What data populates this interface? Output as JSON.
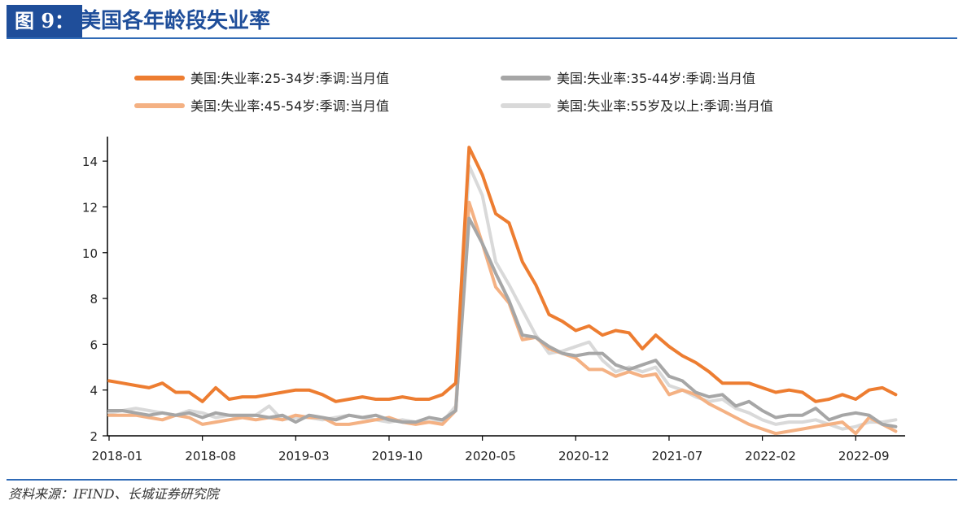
{
  "header": {
    "figure_tag": "图 9：",
    "title": "美国各年龄段失业率"
  },
  "source": "资料来源：IFIND、长城证券研究院",
  "colors": {
    "brand_blue": "#1f4e9a",
    "rule": "#2f6ab6"
  },
  "chart_data": {
    "type": "line",
    "title": "美国各年龄段失业率",
    "xlabel": "",
    "ylabel": "",
    "ylim": [
      2,
      15
    ],
    "yticks": [
      2,
      4,
      6,
      8,
      10,
      12,
      14
    ],
    "grid": false,
    "legend_position": "top",
    "x_tick_labels": [
      "2018-01",
      "2018-08",
      "2019-03",
      "2019-10",
      "2020-05",
      "2020-12",
      "2021-07",
      "2022-02",
      "2022-09"
    ],
    "x": [
      "2018-01",
      "2018-02",
      "2018-03",
      "2018-04",
      "2018-05",
      "2018-06",
      "2018-07",
      "2018-08",
      "2018-09",
      "2018-10",
      "2018-11",
      "2018-12",
      "2019-01",
      "2019-02",
      "2019-03",
      "2019-04",
      "2019-05",
      "2019-06",
      "2019-07",
      "2019-08",
      "2019-09",
      "2019-10",
      "2019-11",
      "2019-12",
      "2020-01",
      "2020-02",
      "2020-03",
      "2020-04",
      "2020-05",
      "2020-06",
      "2020-07",
      "2020-08",
      "2020-09",
      "2020-10",
      "2020-11",
      "2020-12",
      "2021-01",
      "2021-02",
      "2021-03",
      "2021-04",
      "2021-05",
      "2021-06",
      "2021-07",
      "2021-08",
      "2021-09",
      "2021-10",
      "2021-11",
      "2021-12",
      "2022-01",
      "2022-02",
      "2022-03",
      "2022-04",
      "2022-05",
      "2022-06",
      "2022-07",
      "2022-08",
      "2022-09",
      "2022-10",
      "2022-11",
      "2022-12"
    ],
    "series": [
      {
        "name": "美国:失业率:25-34岁:季调:当月值",
        "color": "#ed7d31",
        "width": 4,
        "values": [
          4.4,
          4.3,
          4.2,
          4.1,
          4.3,
          3.9,
          3.9,
          3.5,
          4.1,
          3.6,
          3.7,
          3.7,
          3.8,
          3.9,
          4.0,
          4.0,
          3.8,
          3.5,
          3.6,
          3.7,
          3.6,
          3.6,
          3.7,
          3.6,
          3.6,
          3.8,
          4.3,
          14.6,
          13.4,
          11.7,
          11.3,
          9.6,
          8.6,
          7.3,
          7.0,
          6.6,
          6.8,
          6.4,
          6.6,
          6.5,
          5.8,
          6.4,
          5.9,
          5.5,
          5.2,
          4.8,
          4.3,
          4.3,
          4.3,
          4.1,
          3.9,
          4.0,
          3.9,
          3.5,
          3.6,
          3.8,
          3.6,
          4.0,
          4.1,
          3.8
        ]
      },
      {
        "name": "美国:失业率:35-44岁:季调:当月值",
        "color": "#a6a6a6",
        "width": 4,
        "values": [
          3.1,
          3.1,
          3.0,
          2.9,
          3.0,
          2.9,
          3.0,
          2.8,
          3.0,
          2.9,
          2.9,
          2.9,
          2.8,
          2.9,
          2.6,
          2.9,
          2.8,
          2.7,
          2.9,
          2.8,
          2.9,
          2.7,
          2.6,
          2.6,
          2.8,
          2.7,
          3.1,
          11.5,
          10.4,
          9.1,
          7.9,
          6.4,
          6.3,
          5.9,
          5.6,
          5.5,
          5.6,
          5.6,
          5.1,
          4.9,
          5.1,
          5.3,
          4.6,
          4.4,
          3.9,
          3.7,
          3.8,
          3.3,
          3.5,
          3.1,
          2.8,
          2.9,
          2.9,
          3.2,
          2.7,
          2.9,
          3.0,
          2.9,
          2.5,
          2.4
        ]
      },
      {
        "name": "美国:失业率:45-54岁:季调:当月值",
        "color": "#f4b183",
        "width": 4,
        "values": [
          2.9,
          2.9,
          2.9,
          2.8,
          2.7,
          2.9,
          2.8,
          2.5,
          2.6,
          2.7,
          2.8,
          2.7,
          2.8,
          2.7,
          2.9,
          2.8,
          2.8,
          2.5,
          2.5,
          2.6,
          2.7,
          2.8,
          2.6,
          2.5,
          2.6,
          2.5,
          3.1,
          12.2,
          10.4,
          8.5,
          7.8,
          6.2,
          6.3,
          5.8,
          5.6,
          5.4,
          4.9,
          4.9,
          4.6,
          4.8,
          4.6,
          4.7,
          3.8,
          4.0,
          3.8,
          3.4,
          3.1,
          2.8,
          2.5,
          2.3,
          2.1,
          2.2,
          2.3,
          2.4,
          2.5,
          2.6,
          2.1,
          2.8,
          2.5,
          2.2
        ]
      },
      {
        "name": "美国:失业率:55岁及以上:季调:当月值",
        "color": "#d9d9d9",
        "width": 4,
        "values": [
          3.0,
          3.1,
          3.2,
          3.1,
          3.0,
          2.9,
          3.1,
          3.0,
          2.8,
          2.9,
          2.8,
          2.9,
          3.3,
          2.7,
          2.8,
          2.8,
          2.7,
          2.8,
          2.9,
          2.8,
          2.7,
          2.6,
          2.7,
          2.6,
          2.6,
          2.6,
          3.3,
          13.8,
          12.5,
          9.6,
          8.6,
          7.5,
          6.4,
          5.6,
          5.7,
          5.9,
          6.1,
          5.3,
          4.8,
          5.0,
          4.8,
          5.0,
          4.2,
          4.0,
          3.7,
          3.5,
          3.6,
          3.2,
          3.0,
          2.7,
          2.5,
          2.6,
          2.6,
          2.7,
          2.5,
          2.3,
          2.4,
          2.6,
          2.6,
          2.7
        ]
      }
    ]
  }
}
